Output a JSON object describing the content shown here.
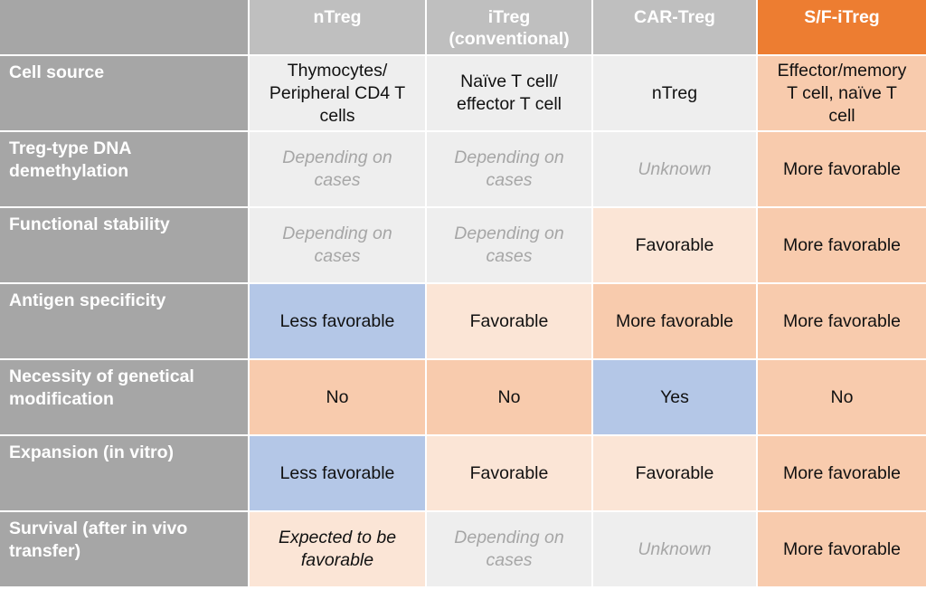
{
  "table": {
    "corner": "",
    "columns": [
      {
        "label": "nTreg",
        "bg": "#bfbfbf"
      },
      {
        "label": "iTreg\n(conventional)",
        "bg": "#bfbfbf"
      },
      {
        "label": "CAR-Treg",
        "bg": "#bfbfbf"
      },
      {
        "label": "S/F-iTreg",
        "bg": "#ed7d31"
      }
    ],
    "rows": [
      {
        "label": "Cell source",
        "cells": [
          {
            "text": "Thymocytes/\nPeripheral CD4 T\ncells",
            "fill": "gray",
            "style": "normal"
          },
          {
            "text": "Naïve T cell/\neffector T cell",
            "fill": "gray",
            "style": "normal"
          },
          {
            "text": "nTreg",
            "fill": "gray",
            "style": "normal"
          },
          {
            "text": "Effector/memory\nT cell, naïve T\ncell",
            "fill": "peach",
            "style": "normal"
          }
        ]
      },
      {
        "label": "Treg-type DNA\ndemethylation",
        "cells": [
          {
            "text": "Depending on\ncases",
            "fill": "gray",
            "style": "muted"
          },
          {
            "text": "Depending on\ncases",
            "fill": "gray",
            "style": "muted"
          },
          {
            "text": "Unknown",
            "fill": "gray",
            "style": "muted"
          },
          {
            "text": "More favorable",
            "fill": "peach",
            "style": "normal"
          }
        ]
      },
      {
        "label": "Functional stability",
        "cells": [
          {
            "text": "Depending on\ncases",
            "fill": "gray",
            "style": "muted"
          },
          {
            "text": "Depending on\ncases",
            "fill": "gray",
            "style": "muted"
          },
          {
            "text": "Favorable",
            "fill": "light",
            "style": "normal"
          },
          {
            "text": "More favorable",
            "fill": "peach",
            "style": "normal"
          }
        ]
      },
      {
        "label": "Antigen specificity",
        "cells": [
          {
            "text": "Less favorable",
            "fill": "blue",
            "style": "normal"
          },
          {
            "text": "Favorable",
            "fill": "light",
            "style": "normal"
          },
          {
            "text": "More favorable",
            "fill": "peach",
            "style": "normal"
          },
          {
            "text": "More favorable",
            "fill": "peach",
            "style": "normal"
          }
        ]
      },
      {
        "label": "Necessity of genetical\nmodification",
        "cells": [
          {
            "text": "No",
            "fill": "peach",
            "style": "normal"
          },
          {
            "text": "No",
            "fill": "peach",
            "style": "normal"
          },
          {
            "text": "Yes",
            "fill": "blue",
            "style": "normal"
          },
          {
            "text": "No",
            "fill": "peach",
            "style": "normal"
          }
        ]
      },
      {
        "label": "Expansion (in vitro)",
        "cells": [
          {
            "text": "Less favorable",
            "fill": "blue",
            "style": "normal"
          },
          {
            "text": "Favorable",
            "fill": "light",
            "style": "normal"
          },
          {
            "text": "Favorable",
            "fill": "light",
            "style": "normal"
          },
          {
            "text": "More favorable",
            "fill": "peach",
            "style": "normal"
          }
        ]
      },
      {
        "label": "Survival (after in vivo\ntransfer)",
        "cells": [
          {
            "text": "Expected to be\nfavorable",
            "fill": "light",
            "style": "italic"
          },
          {
            "text": "Depending on\ncases",
            "fill": "gray",
            "style": "muted"
          },
          {
            "text": "Unknown",
            "fill": "gray",
            "style": "muted"
          },
          {
            "text": "More favorable",
            "fill": "peach",
            "style": "normal"
          }
        ]
      }
    ]
  }
}
